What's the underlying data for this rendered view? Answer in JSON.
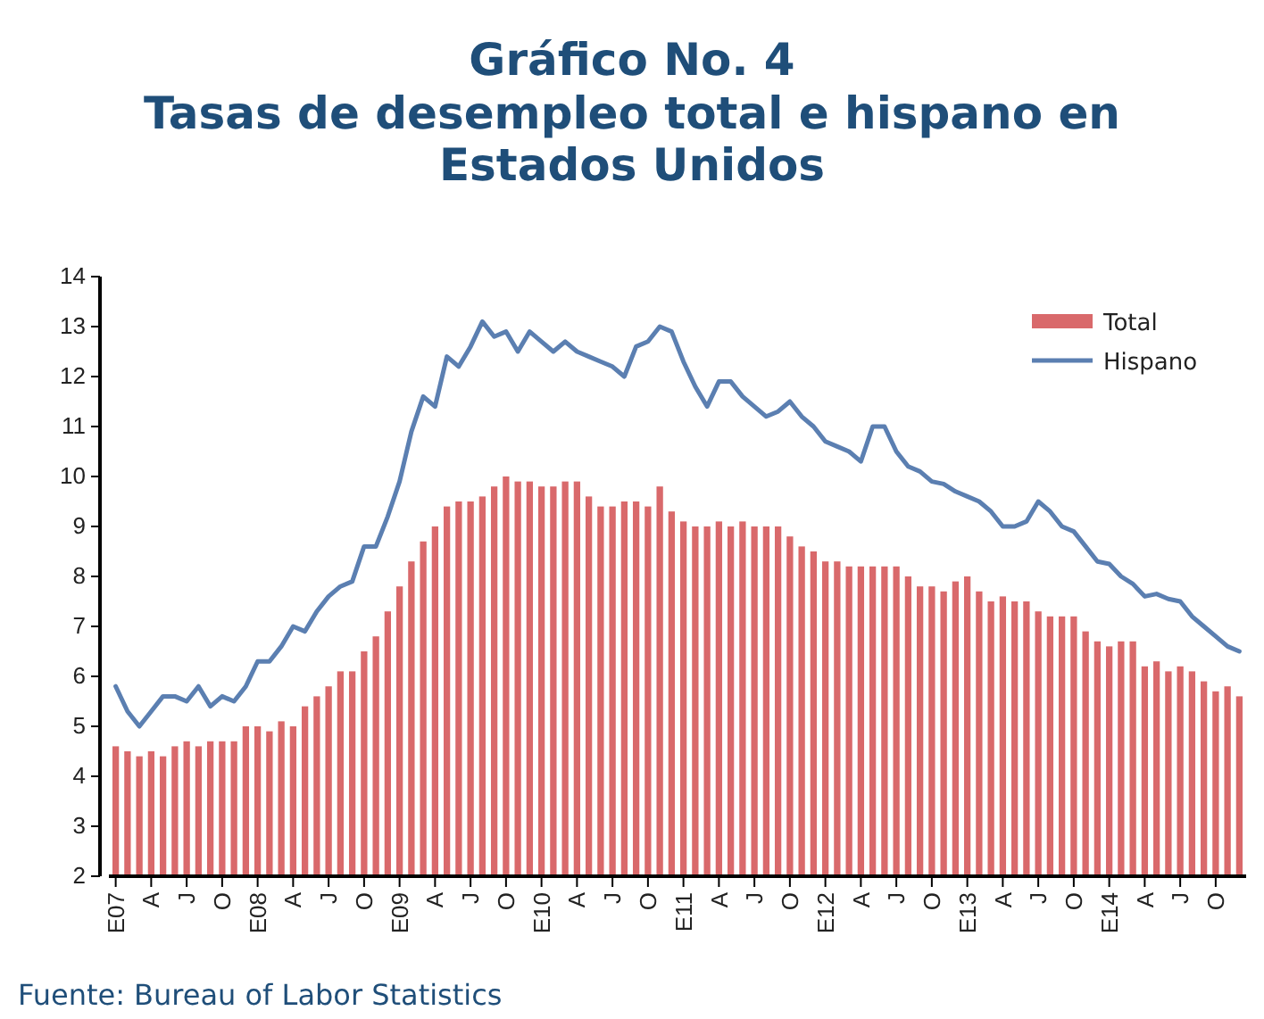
{
  "chart_data": {
    "type": "bar",
    "title": "Gráfico No. 4",
    "subtitle": "Tasas de desempleo total e hispano en Estados Unidos",
    "categories": [
      "E07",
      null,
      null,
      "A",
      null,
      null,
      "J",
      null,
      null,
      "O",
      null,
      null,
      "E08",
      null,
      null,
      "A",
      null,
      null,
      "J",
      null,
      null,
      "O",
      null,
      null,
      "E09",
      null,
      null,
      "A",
      null,
      null,
      "J",
      null,
      null,
      "O",
      null,
      null,
      "E10",
      null,
      null,
      "A",
      null,
      null,
      "J",
      null,
      null,
      "O",
      null,
      null,
      "E11",
      null,
      null,
      "A",
      null,
      null,
      "J",
      null,
      null,
      "O",
      null,
      null,
      "E12",
      null,
      null,
      "A",
      null,
      null,
      "J",
      null,
      null,
      "O",
      null,
      null,
      "E13",
      null,
      null,
      "A",
      null,
      null,
      "J",
      null,
      null,
      "O",
      null,
      null,
      "E14",
      null,
      null,
      "A",
      null,
      null,
      "J",
      null,
      null,
      "O",
      null,
      null
    ],
    "series": [
      {
        "name": "Total",
        "type": "bar",
        "color": "#d9696b",
        "values": [
          4.6,
          4.5,
          4.4,
          4.5,
          4.4,
          4.6,
          4.7,
          4.6,
          4.7,
          4.7,
          4.7,
          5.0,
          5.0,
          4.9,
          5.1,
          5.0,
          5.4,
          5.6,
          5.8,
          6.1,
          6.1,
          6.5,
          6.8,
          7.3,
          7.8,
          8.3,
          8.7,
          9.0,
          9.4,
          9.5,
          9.5,
          9.6,
          9.8,
          10.0,
          9.9,
          9.9,
          9.8,
          9.8,
          9.9,
          9.9,
          9.6,
          9.4,
          9.4,
          9.5,
          9.5,
          9.4,
          9.8,
          9.3,
          9.1,
          9.0,
          9.0,
          9.1,
          9.0,
          9.1,
          9.0,
          9.0,
          9.0,
          8.8,
          8.6,
          8.5,
          8.3,
          8.3,
          8.2,
          8.2,
          8.2,
          8.2,
          8.2,
          8.0,
          7.8,
          7.8,
          7.7,
          7.9,
          8.0,
          7.7,
          7.5,
          7.6,
          7.5,
          7.5,
          7.3,
          7.2,
          7.2,
          7.2,
          6.9,
          6.7,
          6.6,
          6.7,
          6.7,
          6.2,
          6.3,
          6.1,
          6.2,
          6.1,
          5.9,
          5.7,
          5.8,
          5.6
        ]
      },
      {
        "name": "Hispano",
        "type": "line",
        "color": "#5b7fb1",
        "values": [
          5.8,
          5.3,
          5.0,
          5.3,
          5.6,
          5.6,
          5.5,
          5.8,
          5.4,
          5.6,
          5.5,
          5.8,
          6.3,
          6.3,
          6.6,
          7.0,
          6.9,
          7.3,
          7.6,
          7.8,
          7.9,
          8.6,
          8.6,
          9.2,
          9.9,
          10.9,
          11.6,
          11.4,
          12.4,
          12.2,
          12.6,
          13.1,
          12.8,
          12.9,
          12.5,
          12.9,
          12.7,
          12.5,
          12.7,
          12.5,
          12.4,
          12.3,
          12.2,
          12.0,
          12.6,
          12.7,
          13.0,
          12.9,
          12.3,
          11.8,
          11.4,
          11.9,
          11.9,
          11.6,
          11.4,
          11.2,
          11.3,
          11.5,
          11.2,
          11.0,
          10.7,
          10.6,
          10.5,
          10.3,
          11.0,
          11.0,
          10.5,
          10.2,
          10.1,
          9.9,
          9.85,
          9.7,
          9.6,
          9.5,
          9.3,
          9.0,
          9.0,
          9.1,
          9.5,
          9.3,
          9.0,
          8.9,
          8.6,
          8.3,
          8.25,
          8.0,
          7.85,
          7.6,
          7.65,
          7.55,
          7.5,
          7.2,
          7.0,
          6.8,
          6.6,
          6.5
        ]
      }
    ],
    "ylim": [
      2,
      14
    ],
    "yticks": [
      2,
      3,
      4,
      5,
      6,
      7,
      8,
      9,
      10,
      11,
      12,
      13,
      14
    ],
    "grid": false,
    "legend": "top right",
    "annotations": [
      "Fuente: Bureau of Labor Statistics"
    ]
  }
}
